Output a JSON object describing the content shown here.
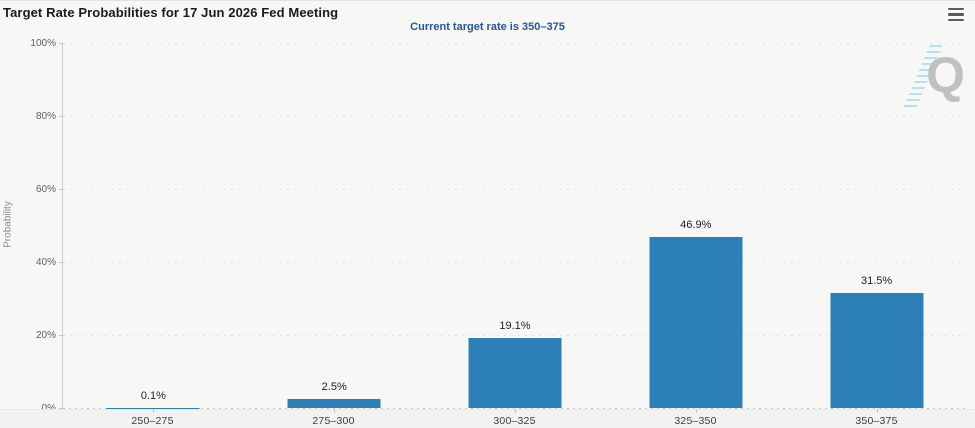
{
  "header": {
    "title": "Target Rate Probabilities for 17 Jun 2026 Fed Meeting",
    "subtitle": "Current target rate is 350–375",
    "menu_icon": "hamburger-menu"
  },
  "watermark": {
    "letter": "Q",
    "hatch_color": "#9fdcf2",
    "letter_color": "#c0c0c0"
  },
  "chart_data": {
    "type": "bar",
    "title": "Target Rate Probabilities for 17 Jun 2026 Fed Meeting",
    "subtitle": "Current target rate is 350–375",
    "categories": [
      "250–275",
      "275–300",
      "300–325",
      "325–350",
      "350–375"
    ],
    "values": [
      0.1,
      2.5,
      19.1,
      46.9,
      31.5
    ],
    "value_labels": [
      "0.1%",
      "2.5%",
      "19.1%",
      "46.9%",
      "31.5%"
    ],
    "xlabel": "",
    "ylabel": "Probability",
    "ylim": [
      0,
      100
    ],
    "yticks": [
      0,
      20,
      40,
      60,
      80,
      100
    ],
    "ytick_labels": [
      "0%",
      "20%",
      "40%",
      "60%",
      "80%",
      "100%"
    ],
    "grid": "horizontal-dotted",
    "legend": "none",
    "bar_color": "#2d7fb8"
  }
}
